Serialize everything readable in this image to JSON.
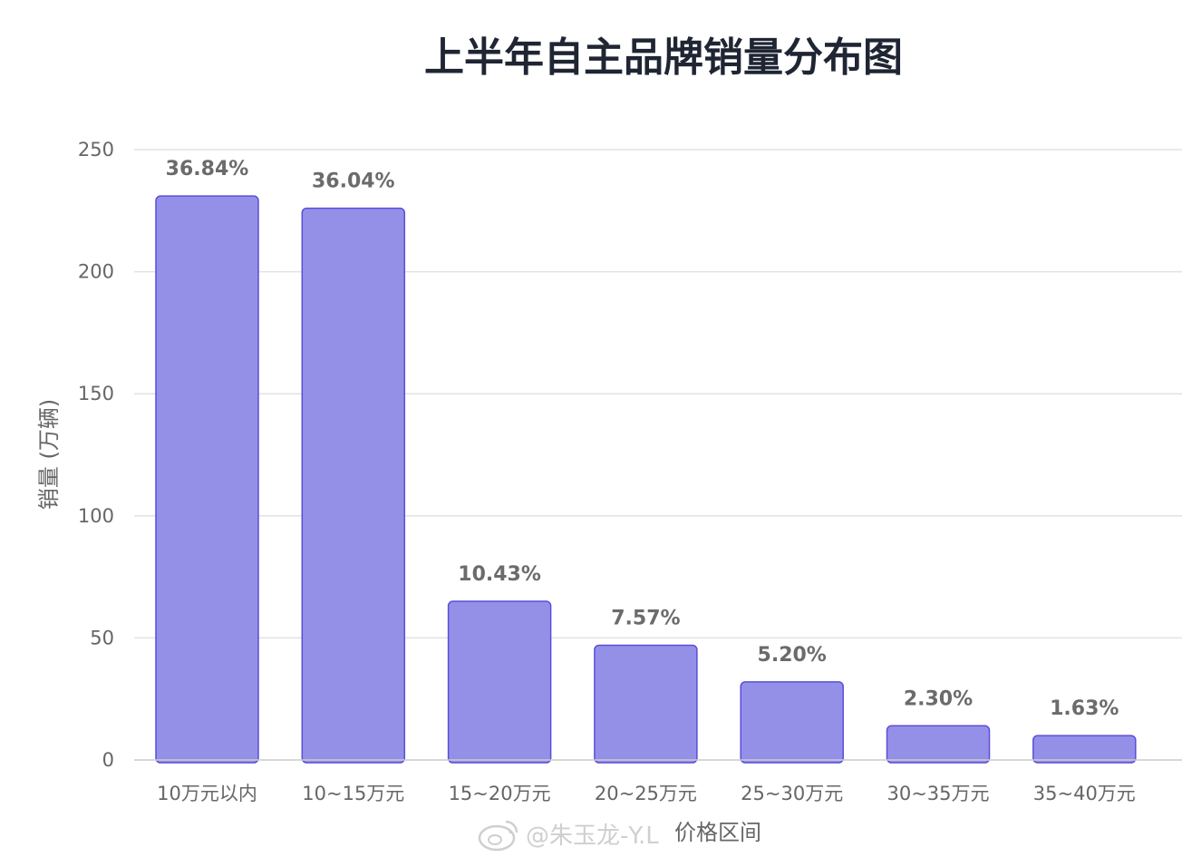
{
  "chart_data": {
    "type": "bar",
    "title": "上半年自主品牌销量分布图",
    "xlabel": "价格区间",
    "ylabel": "销量 (万辆)",
    "categories": [
      "10万元以内",
      "10~15万元",
      "15~20万元",
      "20~25万元",
      "25~30万元",
      "30~35万元",
      "35~40万元"
    ],
    "values": [
      231,
      226,
      65,
      47,
      32,
      14,
      10
    ],
    "data_labels": [
      "36.84%",
      "36.04%",
      "10.43%",
      "7.57%",
      "5.20%",
      "2.30%",
      "1.63%"
    ],
    "ylim": [
      0,
      250
    ],
    "yticks": [
      0,
      50,
      100,
      150,
      200,
      250
    ],
    "grid": true,
    "bar_fill": "#9490e8",
    "bar_stroke": "#5a4fd8"
  },
  "watermark": {
    "text": "@朱玉龙-Y.L"
  }
}
